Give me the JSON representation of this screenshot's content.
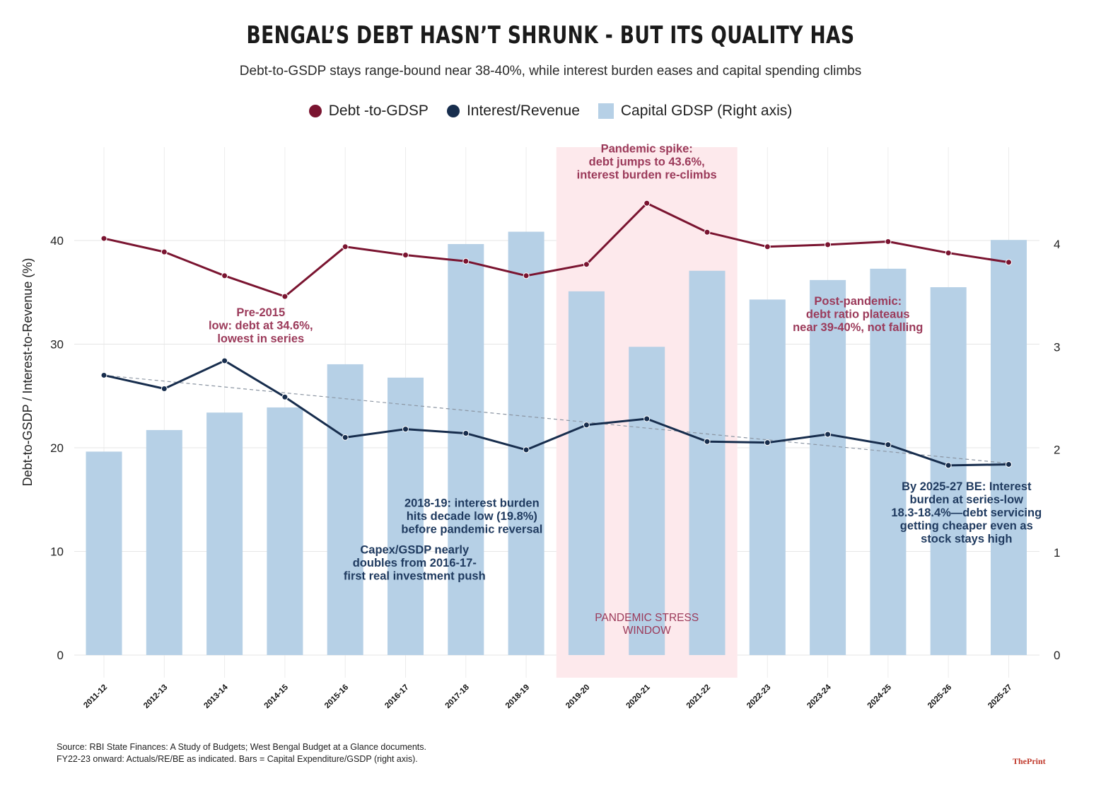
{
  "title": "BENGAL’S DEBT HASN’T SHRUNK - BUT ITS QUALITY HAS",
  "subtitle": "Debt-to-GSDP stays range-bound near 38-40%, while interest burden eases and capital spending climbs",
  "colors": {
    "debt": "#7a1430",
    "interest": "#172d4d",
    "capex": "#b6d0e6",
    "pandemic_shade": "#fde9ec",
    "annotation_red": "#9b3a5a",
    "annotation_navy": "#1f3a5f"
  },
  "chart_data": {
    "type": "bar+line",
    "categories": [
      "2011-12",
      "2012-13",
      "2013-14",
      "2014-15",
      "2015-16",
      "2016-17",
      "2017-18",
      "2018-19",
      "2019-20",
      "2020-21",
      "2021-22",
      "2022-23",
      "2023-24",
      "2024-25",
      "2025-26",
      "2025-27"
    ],
    "series": [
      {
        "name": "Debt -to-GDSP",
        "type": "line",
        "axis": "left",
        "color": "#7a1430",
        "values": [
          40.2,
          38.9,
          36.6,
          34.6,
          39.4,
          38.6,
          38.0,
          36.6,
          37.7,
          43.6,
          40.8,
          39.4,
          39.6,
          39.9,
          38.8,
          37.9
        ]
      },
      {
        "name": "Interest/Revenue",
        "type": "line",
        "axis": "left",
        "color": "#172d4d",
        "values": [
          27.0,
          25.7,
          28.4,
          24.9,
          21.0,
          21.8,
          21.4,
          19.8,
          22.2,
          22.8,
          20.6,
          20.5,
          21.3,
          20.3,
          18.3,
          18.4
        ]
      },
      {
        "name": "Capital GDSP (Right axis)",
        "type": "bar",
        "axis": "right",
        "color": "#b6d0e6",
        "values": [
          1.98,
          2.19,
          2.36,
          2.41,
          2.83,
          2.7,
          4.0,
          4.12,
          3.54,
          3.0,
          3.74,
          3.46,
          3.65,
          3.76,
          3.58,
          4.04
        ]
      }
    ],
    "trendline": {
      "series": "Interest/Revenue",
      "from": 27.0,
      "to": 18.5,
      "style": "dashed"
    },
    "ylabel": "Debt-to-GSDP / Interest-to-Revenue (%)",
    "ylim": [
      0,
      50
    ],
    "yticks": [
      0,
      10,
      20,
      30,
      40
    ],
    "y2lim": [
      0,
      5
    ],
    "y2ticks": [
      0,
      1,
      2,
      3,
      4
    ],
    "grid": true,
    "legend_position": "top-center",
    "shaded_region": {
      "from": "2019-20",
      "to": "2021-22",
      "label": [
        "PANDEMIC STRESS",
        "WINDOW"
      ]
    },
    "annotations": [
      {
        "lines": [
          "Pandemic spike:",
          "debt jumps to 43.6%,",
          "interest burden re-climbs"
        ],
        "anchor": "2020-21",
        "y": 48.5,
        "color": "red",
        "bold": true
      },
      {
        "lines": [
          "Pre-2015",
          "low: debt at 34.6%,",
          "lowest in series"
        ],
        "anchor": "2013-14",
        "y": 32.7,
        "offset": 0.6,
        "color": "red",
        "bold": true
      },
      {
        "lines": [
          "Post-pandemic:",
          "debt ratio plateaus",
          "near 39-40%, not falling"
        ],
        "anchor": "2023-24",
        "y": 33.8,
        "offset": 0.5,
        "color": "red",
        "bold": true
      },
      {
        "lines": [
          "2018-19: interest burden",
          "hits decade low (19.8%)",
          "before pandemic reversal"
        ],
        "anchor": "2017-18",
        "y": 14.3,
        "offset": 0.1,
        "color": "navy",
        "bold": true
      },
      {
        "lines": [
          "Capex/GSDP nearly",
          "doubles from 2016-17-",
          "first real investment push"
        ],
        "anchor": "2016-17",
        "y": 9.8,
        "offset": 0.15,
        "color": "navy",
        "bold": true
      },
      {
        "lines": [
          "By 2025-27 BE: Interest",
          "burden at series-low",
          "18.3-18.4%—debt servicing",
          "getting cheaper even as",
          "stock stays high"
        ],
        "anchor": "2024-25",
        "y": 15.9,
        "offset": 1.3,
        "color": "navy",
        "bold": true
      }
    ]
  },
  "source": {
    "line1": "Source: RBI State Finances: A Study of Budgets; West Bengal Budget at a Glance documents.",
    "line2": "FY22-23 onward: Actuals/RE/BE as indicated. Bars = Capital Expenditure/GSDP (right axis)."
  },
  "brand": "ThePrint"
}
